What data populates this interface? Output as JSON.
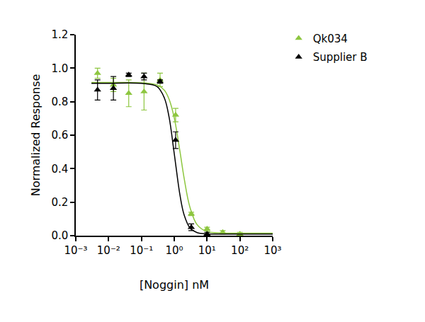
{
  "chart_data": {
    "type": "scatter",
    "x_label": "[Noggin] nM",
    "y_label": "Normalized Response",
    "log": "x",
    "grid": false,
    "legend": "top right outside",
    "xlim": [
      0.001,
      1000
    ],
    "xticks": [
      {
        "value": 0.001,
        "label": "10⁻³"
      },
      {
        "value": 0.01,
        "label": "10⁻²"
      },
      {
        "value": 0.1,
        "label": "10⁻¹"
      },
      {
        "value": 1,
        "label": "10⁰"
      },
      {
        "value": 10,
        "label": "10¹"
      },
      {
        "value": 100,
        "label": "10²"
      },
      {
        "value": 1000,
        "label": "10³"
      }
    ],
    "ylim": [
      0,
      1.2
    ],
    "yticks": [
      {
        "value": 0,
        "label": "0.0"
      },
      {
        "value": 0.2,
        "label": "0.2"
      },
      {
        "value": 0.4,
        "label": "0.4"
      },
      {
        "value": 0.6,
        "label": "0.6"
      },
      {
        "value": 0.8,
        "label": "0.8"
      },
      {
        "value": 1,
        "label": "1.0"
      },
      {
        "value": 1.2,
        "label": "1.2"
      }
    ],
    "series": [
      {
        "name": "Qk034",
        "color": "#8dc63f",
        "marker": "triangle-up",
        "line_style": "solid",
        "x": [
          0.0046,
          0.014,
          0.041,
          0.12,
          0.37,
          1.1,
          3.3,
          10,
          30,
          100
        ],
        "values": [
          0.97,
          0.9,
          0.85,
          0.86,
          0.93,
          0.72,
          0.13,
          0.04,
          0.02,
          0.01
        ],
        "errors": [
          0.03,
          0.04,
          0.08,
          0.11,
          0.04,
          0.04,
          0.01,
          0.01,
          0.01,
          0.01
        ],
        "fit_x": [
          0.003,
          0.01,
          0.1,
          0.3,
          0.5,
          0.7,
          1,
          1.5,
          2,
          3,
          5,
          10,
          30,
          100,
          1000
        ],
        "fit_values": [
          0.915,
          0.915,
          0.913,
          0.9,
          0.868,
          0.813,
          0.703,
          0.5,
          0.343,
          0.17,
          0.065,
          0.024,
          0.016,
          0.015,
          0.015
        ]
      },
      {
        "name": "Supplier B",
        "color": "#000000",
        "marker": "triangle-up",
        "line_style": "solid",
        "x": [
          0.0046,
          0.014,
          0.041,
          0.12,
          0.37,
          1.1,
          3.3,
          10
        ],
        "values": [
          0.87,
          0.88,
          0.96,
          0.95,
          0.92,
          0.57,
          0.05,
          0.01
        ],
        "errors": [
          0.06,
          0.07,
          0.01,
          0.02,
          0.01,
          0.05,
          0.02,
          0.01
        ],
        "fit_x": [
          0.003,
          0.01,
          0.1,
          0.3,
          0.5,
          0.7,
          1,
          1.5,
          2,
          3,
          5,
          10,
          30,
          100,
          1000
        ],
        "fit_values": [
          0.91,
          0.91,
          0.909,
          0.89,
          0.822,
          0.705,
          0.49,
          0.24,
          0.124,
          0.047,
          0.018,
          0.011,
          0.01,
          0.01,
          0.01
        ]
      }
    ]
  }
}
